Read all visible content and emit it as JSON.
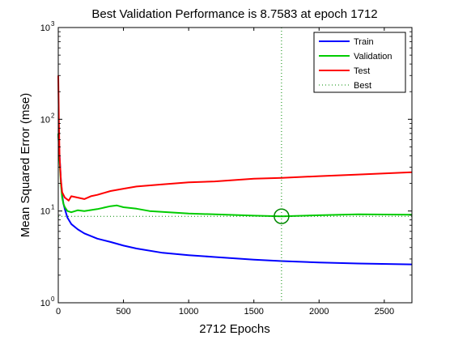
{
  "chart_data": {
    "type": "line",
    "title": "Best Validation Performance is 8.7583 at epoch 1712",
    "xlabel": "2712 Epochs",
    "ylabel": "Mean Squared Error  (mse)",
    "xlim": [
      0,
      2712
    ],
    "ylim": [
      1,
      1000
    ],
    "yscale": "log",
    "xticks": [
      0,
      500,
      1000,
      1500,
      2000,
      2500
    ],
    "xtick_labels": [
      "0",
      "500",
      "1000",
      "1500",
      "2000",
      "2500"
    ],
    "yticks": [
      1,
      10,
      100,
      1000
    ],
    "ytick_labels": [
      {
        "base": "10",
        "exp": "0"
      },
      {
        "base": "10",
        "exp": "1"
      },
      {
        "base": "10",
        "exp": "2"
      },
      {
        "base": "10",
        "exp": "3"
      }
    ],
    "grid": false,
    "legend_position": "top-right",
    "series": [
      {
        "name": "Train",
        "color": "#0000ff",
        "x": [
          0,
          10,
          20,
          30,
          40,
          50,
          70,
          100,
          150,
          200,
          300,
          400,
          500,
          600,
          800,
          1000,
          1200,
          1500,
          1712,
          2000,
          2300,
          2712
        ],
        "y": [
          70,
          40,
          22,
          15,
          12,
          10.5,
          8.5,
          7.2,
          6.3,
          5.7,
          5.0,
          4.6,
          4.2,
          3.9,
          3.5,
          3.3,
          3.15,
          2.95,
          2.85,
          2.75,
          2.68,
          2.62
        ]
      },
      {
        "name": "Validation",
        "color": "#00cc00",
        "x": [
          0,
          10,
          20,
          30,
          40,
          50,
          70,
          100,
          150,
          200,
          300,
          400,
          450,
          500,
          600,
          700,
          800,
          1000,
          1200,
          1500,
          1712,
          2000,
          2300,
          2712
        ],
        "y": [
          70,
          35,
          20,
          14,
          12,
          11,
          10,
          9.7,
          10.2,
          10.0,
          10.5,
          11.3,
          11.5,
          11.0,
          10.6,
          10.0,
          9.8,
          9.4,
          9.2,
          8.9,
          8.7583,
          9.0,
          9.2,
          9.1
        ]
      },
      {
        "name": "Test",
        "color": "#ff0000",
        "x": [
          0,
          5,
          10,
          20,
          30,
          50,
          80,
          100,
          150,
          200,
          250,
          300,
          400,
          500,
          600,
          800,
          1000,
          1200,
          1500,
          1712,
          2000,
          2300,
          2712
        ],
        "y": [
          300,
          90,
          40,
          22,
          16,
          14,
          13,
          14.5,
          14,
          13.5,
          14.5,
          15,
          16.5,
          17.5,
          18.5,
          19.5,
          20.5,
          21,
          22.5,
          23,
          24,
          25,
          26.5
        ]
      }
    ],
    "best": {
      "name": "Best",
      "epoch": 1712,
      "value": 8.7583,
      "color": "#008800"
    }
  }
}
